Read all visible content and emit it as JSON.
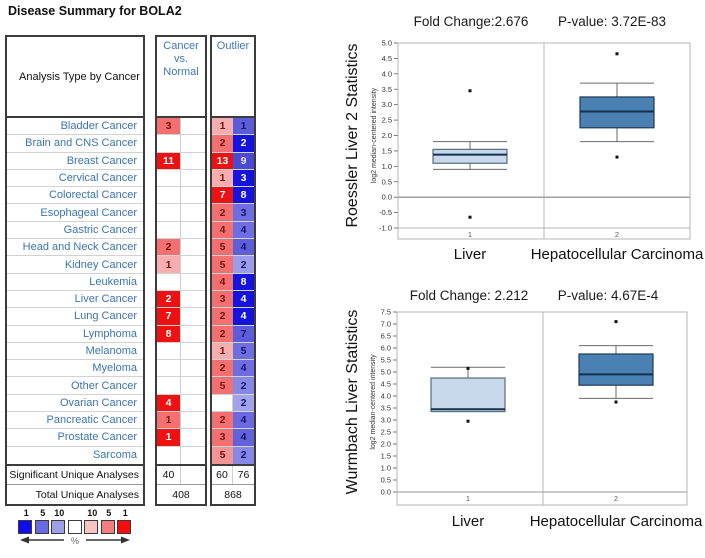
{
  "title": "Disease Summary for BOLA2",
  "table": {
    "header_label": "Analysis Type by Cancer",
    "col1_header": "Cancer vs. Normal",
    "col2_header": "Outlier",
    "rows": [
      {
        "name": "Bladder Cancer",
        "cvn": {
          "v": "3",
          "bg": "#f37070",
          "fg": "#7e1010"
        },
        "up": {
          "v": "1",
          "bg": "#f6aeae",
          "fg": "#7e1010"
        },
        "dn": {
          "v": "1",
          "bg": "#5c5cd6",
          "fg": "#14146e"
        }
      },
      {
        "name": "Brain and CNS Cancer",
        "cvn": null,
        "up": {
          "v": "2",
          "bg": "#f37070",
          "fg": "#7e1010"
        },
        "dn": {
          "v": "2",
          "bg": "#1414dd",
          "fg": "#ffffff"
        }
      },
      {
        "name": "Breast Cancer",
        "cvn": {
          "v": "11",
          "bg": "#ee1111",
          "fg": "#ffffff"
        },
        "up": {
          "v": "13",
          "bg": "#ee1111",
          "fg": "#ffffff"
        },
        "dn": {
          "v": "9",
          "bg": "#4a4ad2",
          "fg": "#e8e8f0"
        }
      },
      {
        "name": "Cervical Cancer",
        "cvn": null,
        "up": {
          "v": "1",
          "bg": "#f6aeae",
          "fg": "#7e1010"
        },
        "dn": {
          "v": "3",
          "bg": "#1414dd",
          "fg": "#ffffff"
        }
      },
      {
        "name": "Colorectal Cancer",
        "cvn": null,
        "up": {
          "v": "7",
          "bg": "#ee1111",
          "fg": "#ffffff"
        },
        "dn": {
          "v": "8",
          "bg": "#1414dd",
          "fg": "#ffffff"
        }
      },
      {
        "name": "Esophageal Cancer",
        "cvn": null,
        "up": {
          "v": "2",
          "bg": "#f37070",
          "fg": "#7e1010"
        },
        "dn": {
          "v": "3",
          "bg": "#6e6ee0",
          "fg": "#14146e"
        }
      },
      {
        "name": "Gastric Cancer",
        "cvn": null,
        "up": {
          "v": "4",
          "bg": "#f37070",
          "fg": "#7e1010"
        },
        "dn": {
          "v": "4",
          "bg": "#6e6ee0",
          "fg": "#14146e"
        }
      },
      {
        "name": "Head and Neck Cancer",
        "cvn": {
          "v": "2",
          "bg": "#f37070",
          "fg": "#7e1010"
        },
        "up": {
          "v": "5",
          "bg": "#f37070",
          "fg": "#7e1010"
        },
        "dn": {
          "v": "4",
          "bg": "#5e5ed8",
          "fg": "#14146e"
        }
      },
      {
        "name": "Kidney Cancer",
        "cvn": {
          "v": "1",
          "bg": "#f6aeae",
          "fg": "#7e1010"
        },
        "up": {
          "v": "5",
          "bg": "#f37070",
          "fg": "#7e1010"
        },
        "dn": {
          "v": "2",
          "bg": "#9c9ce8",
          "fg": "#14146e"
        }
      },
      {
        "name": "Leukemia",
        "cvn": null,
        "up": {
          "v": "4",
          "bg": "#f37070",
          "fg": "#7e1010"
        },
        "dn": {
          "v": "8",
          "bg": "#1414dd",
          "fg": "#ffffff"
        }
      },
      {
        "name": "Liver Cancer",
        "cvn": {
          "v": "2",
          "bg": "#ee1111",
          "fg": "#ffffff"
        },
        "up": {
          "v": "3",
          "bg": "#f37070",
          "fg": "#7e1010"
        },
        "dn": {
          "v": "4",
          "bg": "#1414dd",
          "fg": "#ffffff"
        }
      },
      {
        "name": "Lung Cancer",
        "cvn": {
          "v": "7",
          "bg": "#ee1111",
          "fg": "#ffffff"
        },
        "up": {
          "v": "2",
          "bg": "#f37070",
          "fg": "#7e1010"
        },
        "dn": {
          "v": "4",
          "bg": "#1414dd",
          "fg": "#ffffff"
        }
      },
      {
        "name": "Lymphoma",
        "cvn": {
          "v": "8",
          "bg": "#ee1111",
          "fg": "#ffffff"
        },
        "up": {
          "v": "2",
          "bg": "#f37070",
          "fg": "#7e1010"
        },
        "dn": {
          "v": "7",
          "bg": "#5d5dd8",
          "fg": "#14146e"
        }
      },
      {
        "name": "Melanoma",
        "cvn": null,
        "up": {
          "v": "1",
          "bg": "#f6aeae",
          "fg": "#7e1010"
        },
        "dn": {
          "v": "5",
          "bg": "#6e6ee0",
          "fg": "#14146e"
        }
      },
      {
        "name": "Myeloma",
        "cvn": null,
        "up": {
          "v": "2",
          "bg": "#f37070",
          "fg": "#7e1010"
        },
        "dn": {
          "v": "4",
          "bg": "#6e6ee0",
          "fg": "#14146e"
        }
      },
      {
        "name": "Other Cancer",
        "cvn": null,
        "up": {
          "v": "5",
          "bg": "#f37070",
          "fg": "#7e1010"
        },
        "dn": {
          "v": "2",
          "bg": "#8787e4",
          "fg": "#14146e"
        }
      },
      {
        "name": "Ovarian Cancer",
        "cvn": {
          "v": "4",
          "bg": "#ee1111",
          "fg": "#ffffff"
        },
        "up": null,
        "dn": {
          "v": "2",
          "bg": "#a3a3ec",
          "fg": "#14146e"
        }
      },
      {
        "name": "Pancreatic Cancer",
        "cvn": {
          "v": "1",
          "bg": "#f37070",
          "fg": "#7e1010"
        },
        "up": {
          "v": "2",
          "bg": "#f37070",
          "fg": "#7e1010"
        },
        "dn": {
          "v": "4",
          "bg": "#6a6ade",
          "fg": "#14146e"
        }
      },
      {
        "name": "Prostate Cancer",
        "cvn": {
          "v": "1",
          "bg": "#ee1111",
          "fg": "#ffffff"
        },
        "up": {
          "v": "3",
          "bg": "#f37070",
          "fg": "#7e1010"
        },
        "dn": {
          "v": "4",
          "bg": "#6262da",
          "fg": "#14146e"
        }
      },
      {
        "name": "Sarcoma",
        "cvn": null,
        "up": {
          "v": "5",
          "bg": "#f59494",
          "fg": "#7e1010"
        },
        "dn": {
          "v": "2",
          "bg": "#8787e4",
          "fg": "#14146e"
        }
      }
    ],
    "sig_label": "Significant Unique Analyses",
    "sig_cvn": "40",
    "sig_up": "60",
    "sig_dn": "76",
    "total_label": "Total Unique Analyses",
    "total_cvn": "408",
    "total_out": "868"
  },
  "legend": {
    "labels": [
      "1",
      "5",
      "10",
      "",
      "10",
      "5",
      "1"
    ],
    "colors": [
      "#0d0df2",
      "#6969e1",
      "#9f9fe9",
      "#ffffff",
      "#f8c3c3",
      "#f37e7e",
      "#f70d0d"
    ],
    "percent": "%"
  },
  "chart_data": [
    {
      "type": "box",
      "title_left": "Fold Change:2.676",
      "title_right": "P-value: 3.72E-83",
      "side_title": "Roessler Liver 2 Statistics",
      "ylabel": "log2 median-centered intensity",
      "ylim": [
        -1.0,
        5.0
      ],
      "ytick_step": 0.5,
      "refline": 0.0,
      "categories": [
        "1",
        "2"
      ],
      "group_labels": [
        "Liver",
        "Hepatocellular Carcinoma"
      ],
      "series": [
        {
          "name": "Liver",
          "whisker_low": 0.9,
          "q1": 1.1,
          "median": 1.38,
          "q3": 1.55,
          "whisker_high": 1.8,
          "outliers": [
            3.45,
            -0.65
          ],
          "fill": "#c7d9eb",
          "stroke": "#5a6b7c"
        },
        {
          "name": "Hepatocellular Carcinoma",
          "whisker_low": 1.8,
          "q1": 2.25,
          "median": 2.78,
          "q3": 3.25,
          "whisker_high": 3.7,
          "outliers": [
            4.65,
            1.3
          ],
          "fill": "#4b80b2",
          "stroke": "#1f3a56"
        }
      ]
    },
    {
      "type": "box",
      "title_left": "Fold Change: 2.212",
      "title_right": "P-value: 4.67E-4",
      "side_title": "Wurmbach Liver Statistics",
      "ylabel": "log2 median-centered intensity",
      "ylim": [
        0.0,
        7.5
      ],
      "ytick_step": 0.5,
      "refline": 0.0,
      "categories": [
        "1",
        "2"
      ],
      "group_labels": [
        "Liver",
        "Hepatocellular Carcinoma"
      ],
      "series": [
        {
          "name": "Liver",
          "whisker_low": null,
          "q1": 3.35,
          "median": 3.45,
          "q3": 4.75,
          "whisker_high": 5.2,
          "outliers": [
            5.15,
            2.95
          ],
          "fill": "#c7d9eb",
          "stroke": "#5a6b7c"
        },
        {
          "name": "Hepatocellular Carcinoma",
          "whisker_low": 3.9,
          "q1": 4.45,
          "median": 4.9,
          "q3": 5.75,
          "whisker_high": 6.1,
          "outliers": [
            7.1,
            3.75
          ],
          "fill": "#4b80b2",
          "stroke": "#1f3a56"
        }
      ]
    }
  ]
}
